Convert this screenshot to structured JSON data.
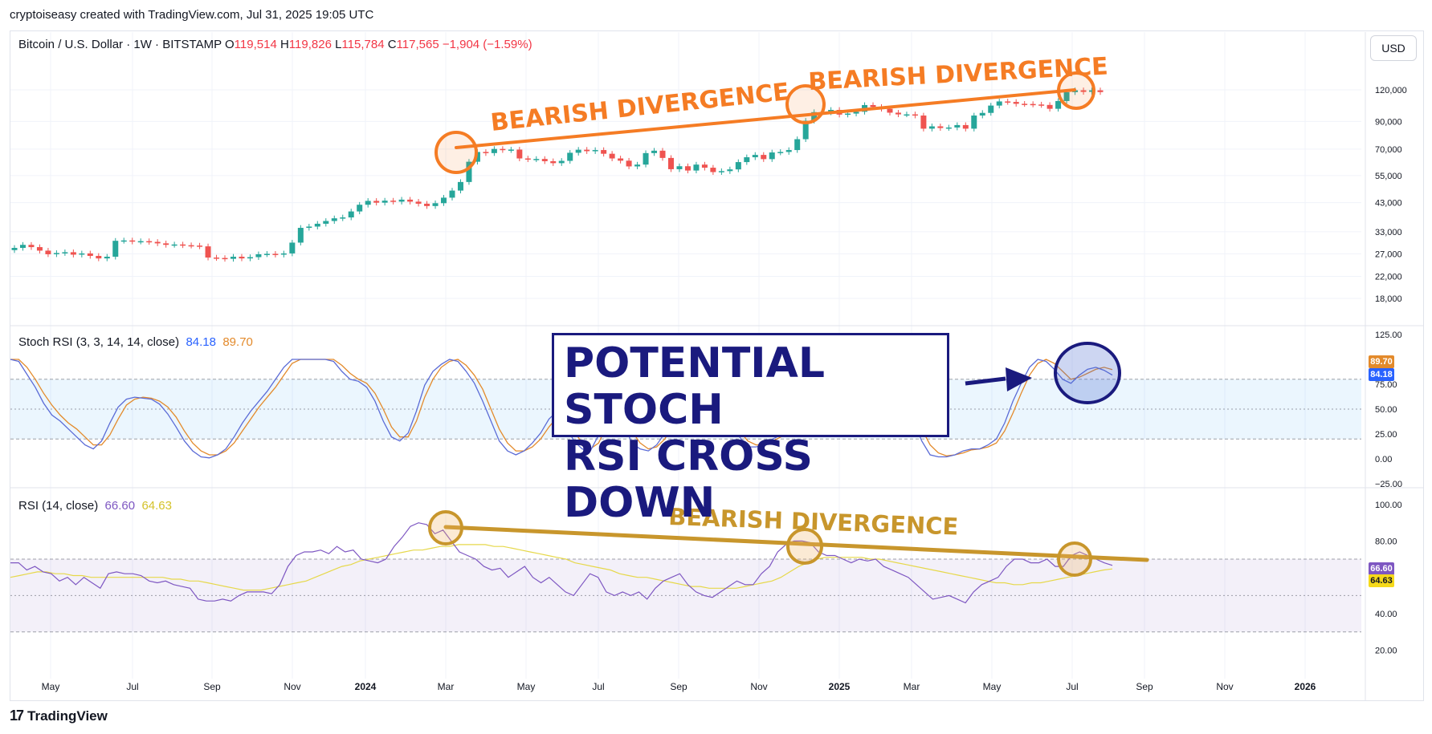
{
  "attribution": "cryptoiseasy created with TradingView.com, Jul 31, 2025 19:05 UTC",
  "brand": "TradingView",
  "symbol": {
    "name": "Bitcoin / U.S. Dollar · 1W · BITSTAMP",
    "open_label": "O",
    "open": "119,514",
    "high_label": "H",
    "high": "119,826",
    "low_label": "L",
    "low": "115,784",
    "close_label": "C",
    "close": "117,565",
    "change": "−1,904 (−1.59%)"
  },
  "currency_button": "USD",
  "stoch_title": "Stoch RSI (3, 3, 14, 14, close)",
  "stoch_k": "84.18",
  "stoch_d": "89.70",
  "rsi_title": "RSI (14, close)",
  "rsi_value": "66.60",
  "rsi_ma": "64.63",
  "callout": {
    "line1": "POTENTIAL STOCH",
    "line2": "RSI CROSS DOWN"
  },
  "colors": {
    "up": "#26a69a",
    "down": "#ef5350",
    "orange": "#f57c24",
    "gold": "#c8962c",
    "stoch_k": "#5b6bd6",
    "stoch_d": "#e38a2b",
    "rsi": "#7e57c2",
    "rsi_ma": "#e6d84a",
    "navy": "#1a1a7e"
  },
  "chart_data": [
    {
      "type": "candlestick",
      "title": "Bitcoin / U.S. Dollar · 1W · BITSTAMP",
      "y_scale": "log",
      "y_ticks": [
        "120,000",
        "90,000",
        "70,000",
        "55,000",
        "43,000",
        "33,000",
        "27,000",
        "22,000",
        "18,000"
      ],
      "y_tick_values": [
        120000,
        90000,
        70000,
        55000,
        43000,
        33000,
        27000,
        22000,
        18000
      ],
      "x_ticks": [
        "May",
        "Jul",
        "Sep",
        "Nov",
        "2024",
        "Mar",
        "May",
        "Jul",
        "Sep",
        "Nov",
        "2025",
        "Mar",
        "May",
        "Jul",
        "Sep",
        "Nov",
        "2026"
      ],
      "approx_weekly_close": [
        28500,
        29300,
        28700,
        27800,
        26900,
        27200,
        27400,
        26800,
        27100,
        26500,
        25900,
        26300,
        30400,
        30500,
        30200,
        30300,
        30100,
        29700,
        29300,
        29400,
        29200,
        29100,
        28900,
        26100,
        26000,
        25800,
        26300,
        25900,
        26200,
        26900,
        27000,
        26800,
        27100,
        29900,
        34200,
        34600,
        35500,
        36400,
        37300,
        37600,
        39700,
        42200,
        43700,
        43000,
        43800,
        43400,
        44200,
        43400,
        42600,
        41700,
        42800,
        45000,
        48000,
        51900,
        62400,
        68200,
        67500,
        70100,
        69400,
        69700,
        64300,
        63800,
        64000,
        62700,
        61600,
        62900,
        67700,
        69600,
        68700,
        69400,
        67100,
        64300,
        63000,
        59800,
        60800,
        67500,
        69000,
        64600,
        58300,
        59900,
        57600,
        60800,
        59100,
        56800,
        57300,
        58200,
        62200,
        65000,
        66400,
        63900,
        67900,
        68200,
        69400,
        76600,
        90600,
        98000,
        97800,
        100000,
        95800,
        96700,
        98300,
        104500,
        102700,
        101000,
        97500,
        96000,
        96000,
        95000,
        84300,
        86100,
        84800,
        85200,
        87100,
        84300,
        95000,
        97300,
        104000,
        108000,
        107500,
        105700,
        105500,
        105000,
        104600,
        101000,
        108400,
        117500,
        119500,
        117800,
        119500,
        117565
      ],
      "annotations": [
        "BEARISH DIVERGENCE",
        "BEARISH DIVERGENCE"
      ]
    },
    {
      "type": "line",
      "title": "Stoch RSI (3, 3, 14, 14, close)",
      "y_ticks": [
        "125.00",
        "75.00",
        "50.00",
        "25.00",
        "0.00",
        "−25.00"
      ],
      "bands": [
        20,
        80
      ],
      "series": [
        {
          "name": "84.18",
          "values": [
            100,
            98,
            85,
            72,
            56,
            44,
            38,
            30,
            22,
            14,
            10,
            18,
            36,
            52,
            60,
            62,
            61,
            60,
            55,
            45,
            32,
            18,
            8,
            2,
            1,
            4,
            10,
            22,
            36,
            48,
            58,
            68,
            80,
            92,
            100,
            100,
            100,
            100,
            100,
            98,
            88,
            80,
            78,
            72,
            58,
            38,
            22,
            18,
            26,
            48,
            74,
            88,
            95,
            100,
            98,
            88,
            76,
            58,
            38,
            18,
            8,
            4,
            8,
            16,
            26,
            40,
            48,
            34,
            18,
            10,
            8,
            24,
            46,
            52,
            36,
            16,
            10,
            8,
            14,
            26,
            48,
            62,
            72,
            70,
            58,
            44,
            34,
            30,
            22,
            12,
            12,
            14,
            20,
            24,
            30,
            52,
            74,
            90,
            98,
            98,
            95,
            88,
            82,
            76,
            70,
            64,
            62,
            60,
            52,
            38,
            18,
            4,
            2,
            2,
            4,
            8,
            10,
            10,
            14,
            20,
            36,
            58,
            76,
            92,
            100,
            98,
            90,
            80,
            76,
            84,
            90,
            92,
            89,
            84.18
          ]
        },
        {
          "name": "89.70",
          "values": [
            100,
            100,
            92,
            80,
            66,
            54,
            44,
            36,
            30,
            22,
            14,
            14,
            24,
            40,
            54,
            60,
            62,
            61,
            58,
            52,
            42,
            28,
            16,
            8,
            4,
            4,
            8,
            16,
            28,
            40,
            52,
            62,
            72,
            84,
            96,
            100,
            100,
            100,
            100,
            100,
            94,
            86,
            80,
            76,
            66,
            50,
            32,
            22,
            22,
            38,
            62,
            80,
            92,
            98,
            100,
            94,
            84,
            70,
            50,
            30,
            16,
            8,
            8,
            12,
            20,
            32,
            42,
            40,
            28,
            16,
            10,
            16,
            34,
            48,
            44,
            28,
            16,
            10,
            12,
            20,
            36,
            54,
            66,
            70,
            64,
            52,
            42,
            34,
            28,
            18,
            14,
            14,
            18,
            22,
            26,
            40,
            62,
            82,
            94,
            98,
            97,
            92,
            86,
            80,
            74,
            68,
            64,
            62,
            56,
            46,
            30,
            14,
            6,
            3,
            4,
            6,
            9,
            10,
            12,
            16,
            28,
            46,
            66,
            84,
            96,
            100,
            96,
            88,
            80,
            82,
            86,
            90,
            92,
            89.7
          ]
        }
      ]
    },
    {
      "type": "line",
      "title": "RSI (14, close)",
      "y_ticks": [
        "100.00",
        "80.00",
        "40.00",
        "20.00"
      ],
      "bands": [
        30,
        50,
        70
      ],
      "series": [
        {
          "name": "66.60",
          "values": [
            68,
            68,
            64,
            66,
            63,
            62,
            58,
            60,
            56,
            60,
            57,
            54,
            62,
            63,
            62,
            62,
            61,
            58,
            57,
            58,
            56,
            55,
            54,
            48,
            47,
            47,
            48,
            47,
            50,
            52,
            52,
            52,
            51,
            56,
            66,
            72,
            74,
            74,
            75,
            73,
            77,
            74,
            75,
            70,
            69,
            68,
            70,
            77,
            82,
            88,
            90,
            89,
            84,
            86,
            80,
            74,
            72,
            70,
            66,
            64,
            65,
            60,
            63,
            66,
            60,
            57,
            60,
            56,
            52,
            50,
            56,
            62,
            60,
            52,
            50,
            52,
            50,
            52,
            48,
            54,
            58,
            60,
            62,
            56,
            52,
            50,
            49,
            52,
            55,
            58,
            56,
            56,
            62,
            66,
            74,
            78,
            80,
            80,
            79,
            74,
            72,
            72,
            70,
            68,
            70,
            69,
            70,
            66,
            64,
            62,
            60,
            56,
            52,
            48,
            49,
            50,
            48,
            46,
            52,
            56,
            58,
            60,
            66,
            70,
            70,
            68,
            68,
            70,
            66,
            66,
            72,
            74,
            72,
            70,
            68,
            66.6
          ]
        },
        {
          "name": "64.63",
          "values": [
            60,
            61,
            62,
            63,
            63,
            62,
            62,
            61,
            61,
            60,
            60,
            60,
            60,
            60,
            60,
            60,
            60,
            60,
            59,
            59,
            58,
            58,
            57,
            56,
            55,
            54,
            53,
            53,
            53,
            54,
            55,
            56,
            57,
            58,
            60,
            62,
            64,
            66,
            67,
            69,
            70,
            71,
            72,
            73,
            74,
            75,
            75,
            76,
            77,
            77,
            78,
            78,
            78,
            78,
            77,
            77,
            76,
            75,
            74,
            73,
            72,
            71,
            70,
            68,
            67,
            66,
            65,
            64,
            62,
            61,
            60,
            60,
            59,
            58,
            57,
            56,
            55,
            55,
            54,
            54,
            54,
            54,
            55,
            56,
            57,
            58,
            60,
            63,
            66,
            68,
            70,
            71,
            71,
            71,
            71,
            71,
            70,
            70,
            69,
            68,
            67,
            66,
            65,
            64,
            63,
            62,
            61,
            60,
            59,
            58,
            57,
            57,
            56,
            56,
            57,
            57,
            58,
            59,
            60,
            61,
            62,
            63,
            64,
            64.63
          ]
        }
      ],
      "annotations": [
        "BEARISH DIVERGENCE"
      ]
    }
  ]
}
